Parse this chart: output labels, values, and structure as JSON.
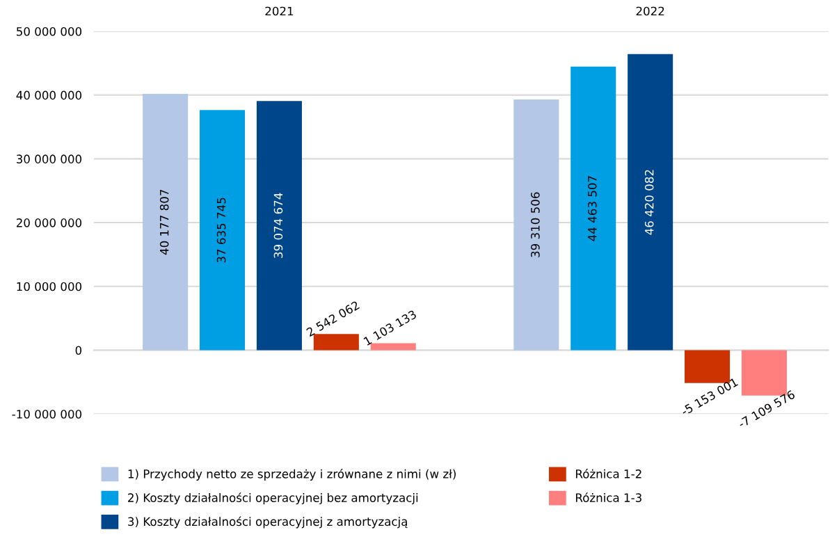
{
  "chart_data": {
    "type": "bar",
    "categories": [
      "2021",
      "2022"
    ],
    "series": [
      {
        "name": "1) Przychody netto ze sprzedaży i zrównane z nimi (w zł)",
        "color": "#b4c7e7",
        "values": [
          40177807,
          39310506
        ]
      },
      {
        "name": "2) Koszty działalności operacyjnej bez amortyzacji",
        "color": "#009fe3",
        "values": [
          37635745,
          44463507
        ]
      },
      {
        "name": "3) Koszty działalności operacyjnej z amortyzacją",
        "color": "#00468b",
        "values": [
          39074674,
          46420082
        ]
      },
      {
        "name": "Różnica 1-2",
        "color": "#cc3300",
        "values": [
          2542062,
          -5153001
        ]
      },
      {
        "name": "Różnica 1-3",
        "color": "#ff7f7f",
        "values": [
          1103133,
          -7109576
        ]
      }
    ],
    "ylim": [
      -10000000,
      50000000
    ],
    "yticks": [
      {
        "value": -10000000,
        "label": "-10 000 000"
      },
      0,
      {
        "value": 10000000,
        "label": "10 000 000"
      },
      {
        "value": 20000000,
        "label": "20 000 000"
      },
      {
        "value": 30000000,
        "label": "30 000 000"
      },
      {
        "value": 40000000,
        "label": "40 000 000"
      },
      {
        "value": 50000000,
        "label": "50 000 000"
      }
    ],
    "grid": "y",
    "data_labels": true,
    "legend": "bottom"
  }
}
